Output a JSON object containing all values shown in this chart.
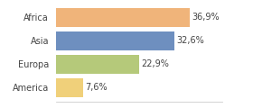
{
  "categories": [
    "Africa",
    "Asia",
    "Europa",
    "America"
  ],
  "values": [
    36.9,
    32.6,
    22.9,
    7.6
  ],
  "labels": [
    "36,9%",
    "32,6%",
    "22,9%",
    "7,6%"
  ],
  "bar_colors": [
    "#f0b47a",
    "#6e8fbf",
    "#b5c97a",
    "#f0d07a"
  ],
  "background_color": "#ffffff",
  "xlim": [
    0,
    46
  ],
  "label_fontsize": 7.0,
  "tick_fontsize": 7.0,
  "bar_height": 0.82
}
